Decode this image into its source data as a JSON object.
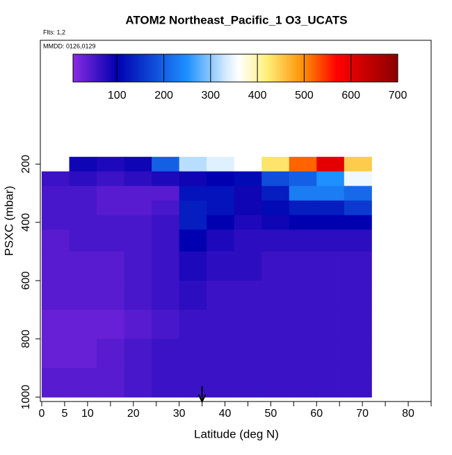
{
  "chart_data": {
    "type": "heatmap",
    "title": "ATOM2 Northeast_Pacific_1 O3_UCATS",
    "annotations": [
      "Flts: 1,2",
      "MMDD: 0126,0129"
    ],
    "xlabel": "Latitude (deg N)",
    "ylabel": "PSXC (mbar)",
    "xlim": [
      0,
      85
    ],
    "xticks": [
      0,
      5,
      10,
      20,
      30,
      40,
      50,
      60,
      70,
      80
    ],
    "xminor_ticks": [
      15,
      25,
      35,
      45,
      55,
      65,
      75,
      85
    ],
    "ylim": [
      1015,
      -225
    ],
    "yticks": [
      200,
      400,
      600,
      800,
      1000
    ],
    "x_edges": [
      0,
      6,
      12,
      18,
      24,
      30,
      36,
      42,
      48,
      54,
      60,
      66,
      72
    ],
    "y_edges": [
      175,
      225,
      275,
      325,
      375,
      425,
      500,
      600,
      700,
      800,
      900,
      1000
    ],
    "values": [
      [
        null,
        90,
        80,
        90,
        200,
        320,
        340,
        360,
        430,
        520,
        600,
        450
      ],
      [
        60,
        70,
        60,
        70,
        80,
        90,
        100,
        110,
        180,
        200,
        250,
        350
      ],
      [
        50,
        50,
        40,
        40,
        40,
        120,
        120,
        90,
        130,
        230,
        230,
        210
      ],
      [
        50,
        50,
        40,
        40,
        50,
        130,
        120,
        90,
        110,
        130,
        130,
        160
      ],
      [
        50,
        50,
        50,
        50,
        60,
        130,
        100,
        80,
        90,
        100,
        100,
        100
      ],
      [
        40,
        50,
        50,
        50,
        60,
        100,
        80,
        70,
        70,
        70,
        70,
        70
      ],
      [
        40,
        40,
        40,
        50,
        60,
        80,
        70,
        70,
        60,
        60,
        60,
        60
      ],
      [
        40,
        40,
        40,
        50,
        60,
        70,
        60,
        60,
        60,
        60,
        60,
        60
      ],
      [
        30,
        30,
        30,
        40,
        50,
        60,
        60,
        60,
        60,
        60,
        60,
        60
      ],
      [
        30,
        30,
        40,
        50,
        60,
        60,
        60,
        60,
        60,
        60,
        60,
        60
      ],
      [
        40,
        40,
        40,
        50,
        60,
        60,
        60,
        60,
        60,
        60,
        60,
        60
      ]
    ],
    "colorbar_lim": [
      6,
      700
    ],
    "colorbar_ticks": [
      100,
      200,
      300,
      400,
      500,
      600,
      700
    ],
    "colorscale": [
      {
        "value": 6,
        "color": "#8a2be2"
      },
      {
        "value": 100,
        "color": "#0000b0"
      },
      {
        "value": 250,
        "color": "#1e90ff"
      },
      {
        "value": 330,
        "color": "#cfe8ff"
      },
      {
        "value": 360,
        "color": "#ffffff"
      },
      {
        "value": 420,
        "color": "#fff07a"
      },
      {
        "value": 500,
        "color": "#ff8c00"
      },
      {
        "value": 570,
        "color": "#ff0000"
      },
      {
        "value": 700,
        "color": "#8b0000"
      }
    ],
    "arrow_x": 35
  }
}
